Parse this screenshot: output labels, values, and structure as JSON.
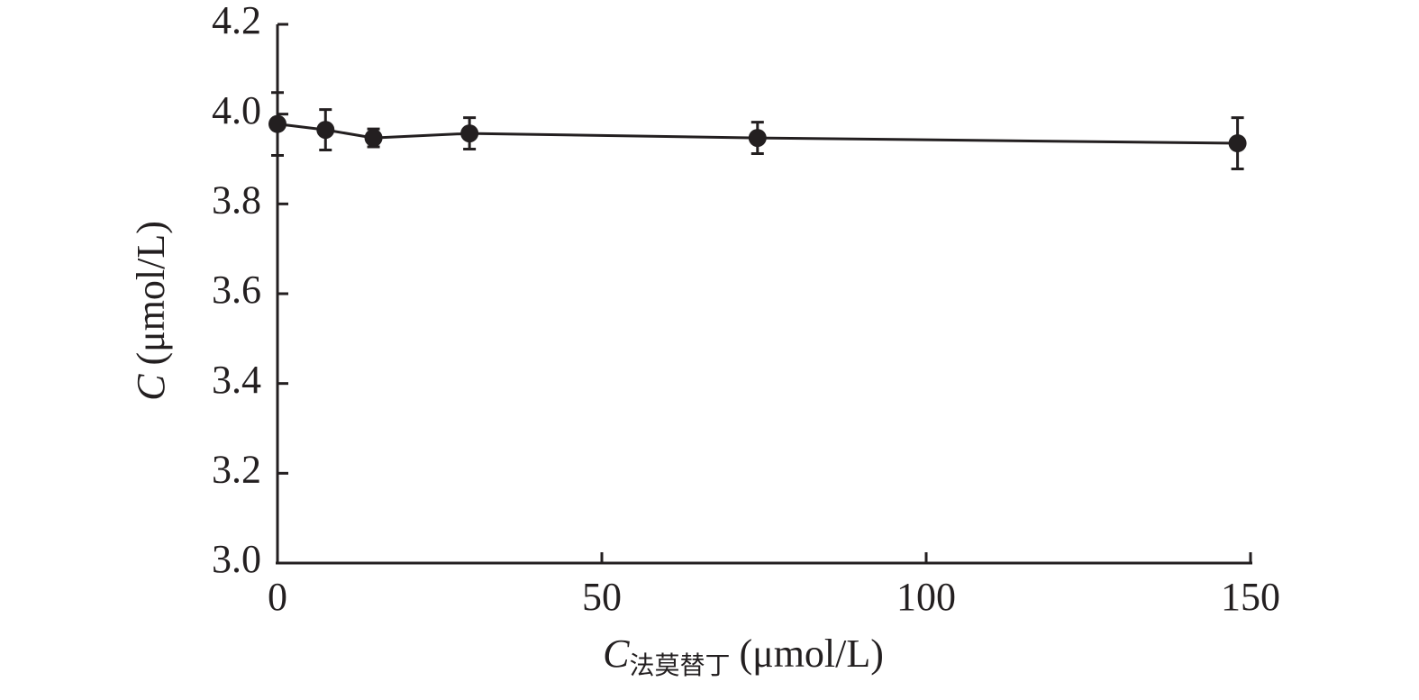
{
  "chart_data": {
    "type": "line",
    "x_label": {
      "symbol": "C",
      "subscript": "法莫替丁",
      "unit": "(μmol/L)"
    },
    "y_label": {
      "symbol": "C",
      "unit": "(μmol/L)"
    },
    "x": [
      0,
      7.4,
      14.8,
      29.6,
      74,
      148
    ],
    "series": [
      {
        "color": "#231f20",
        "values": [
          3.978,
          3.965,
          3.947,
          3.957,
          3.947,
          3.935
        ],
        "errors": [
          0.07,
          0.045,
          0.02,
          0.035,
          0.035,
          0.057
        ]
      }
    ],
    "xlim": [
      0,
      150
    ],
    "xticks": [
      0,
      50,
      100,
      150
    ],
    "ylim": [
      3.0,
      4.2
    ],
    "yticks": [
      {
        "value": 3.0,
        "label": "3.0"
      },
      3.2,
      3.4,
      3.6,
      3.8,
      {
        "value": 4.0,
        "label": "4.0"
      },
      4.2
    ],
    "grid": false
  }
}
